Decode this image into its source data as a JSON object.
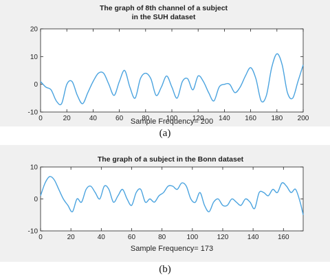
{
  "chart_data": [
    {
      "type": "line",
      "title": [
        "The graph of 8th channel of a subject",
        "in the SUH dataset"
      ],
      "xlabel": "Sample Frequency= 200",
      "ylabel": "",
      "xlim": [
        0,
        200
      ],
      "ylim": [
        -10,
        20
      ],
      "xticks": [
        0,
        20,
        40,
        60,
        80,
        100,
        120,
        140,
        160,
        180,
        200
      ],
      "yticks": [
        -10,
        0,
        10,
        20
      ],
      "grid": false,
      "color": "#4aa3df",
      "caption": "(a)",
      "x": [
        0,
        4,
        8,
        12,
        16,
        20,
        24,
        28,
        32,
        36,
        40,
        44,
        48,
        52,
        56,
        60,
        64,
        68,
        72,
        76,
        80,
        84,
        88,
        92,
        96,
        100,
        104,
        108,
        112,
        116,
        120,
        124,
        128,
        132,
        136,
        140,
        144,
        148,
        152,
        156,
        160,
        164,
        168,
        172,
        176,
        180,
        184,
        188,
        192,
        196,
        200
      ],
      "y": [
        1,
        -1,
        -2,
        -6,
        -7,
        0,
        1,
        -4,
        -7,
        -3,
        1,
        4,
        4,
        0,
        -4,
        1,
        5,
        -1,
        -5,
        2,
        4,
        2,
        -4,
        -1,
        3,
        -1,
        -5,
        1,
        2,
        -2,
        3,
        1,
        -3,
        -6,
        -1,
        0,
        0,
        -3,
        -1,
        3,
        6,
        2,
        -6,
        -4,
        6,
        11,
        7,
        -3,
        -5,
        1,
        7
      ]
    },
    {
      "type": "line",
      "title": "The graph of a subject in the Bonn dataset",
      "xlabel": "Sample Frequency= 173",
      "ylabel": "",
      "xlim": [
        0,
        173
      ],
      "ylim": [
        -10,
        10
      ],
      "xticks": [
        0,
        20,
        40,
        60,
        80,
        100,
        120,
        140,
        160
      ],
      "yticks": [
        -10,
        0,
        10
      ],
      "grid": false,
      "color": "#4aa3df",
      "caption": "(b)",
      "x": [
        0,
        3,
        6,
        9,
        12,
        15,
        18,
        21,
        24,
        27,
        30,
        33,
        36,
        39,
        42,
        45,
        48,
        51,
        54,
        57,
        60,
        63,
        66,
        69,
        72,
        75,
        78,
        81,
        84,
        87,
        90,
        93,
        96,
        99,
        102,
        105,
        108,
        111,
        114,
        117,
        120,
        123,
        126,
        129,
        132,
        135,
        138,
        141,
        144,
        147,
        150,
        153,
        156,
        159,
        162,
        165,
        168,
        171,
        173
      ],
      "y": [
        1,
        5,
        7,
        6,
        3,
        0,
        -2,
        -4,
        0,
        -1,
        3,
        4,
        2,
        0,
        4,
        3,
        -1,
        1,
        3,
        0,
        -2,
        2,
        3,
        -1,
        0,
        -1,
        1,
        2,
        4,
        4,
        3,
        5,
        4,
        0,
        -1,
        2,
        -2,
        -4,
        -1,
        0,
        -2,
        -2,
        0,
        -1,
        -2,
        0,
        -1,
        -3,
        2,
        2,
        1,
        3,
        2,
        5,
        4,
        2,
        3,
        -1,
        -5
      ]
    }
  ]
}
